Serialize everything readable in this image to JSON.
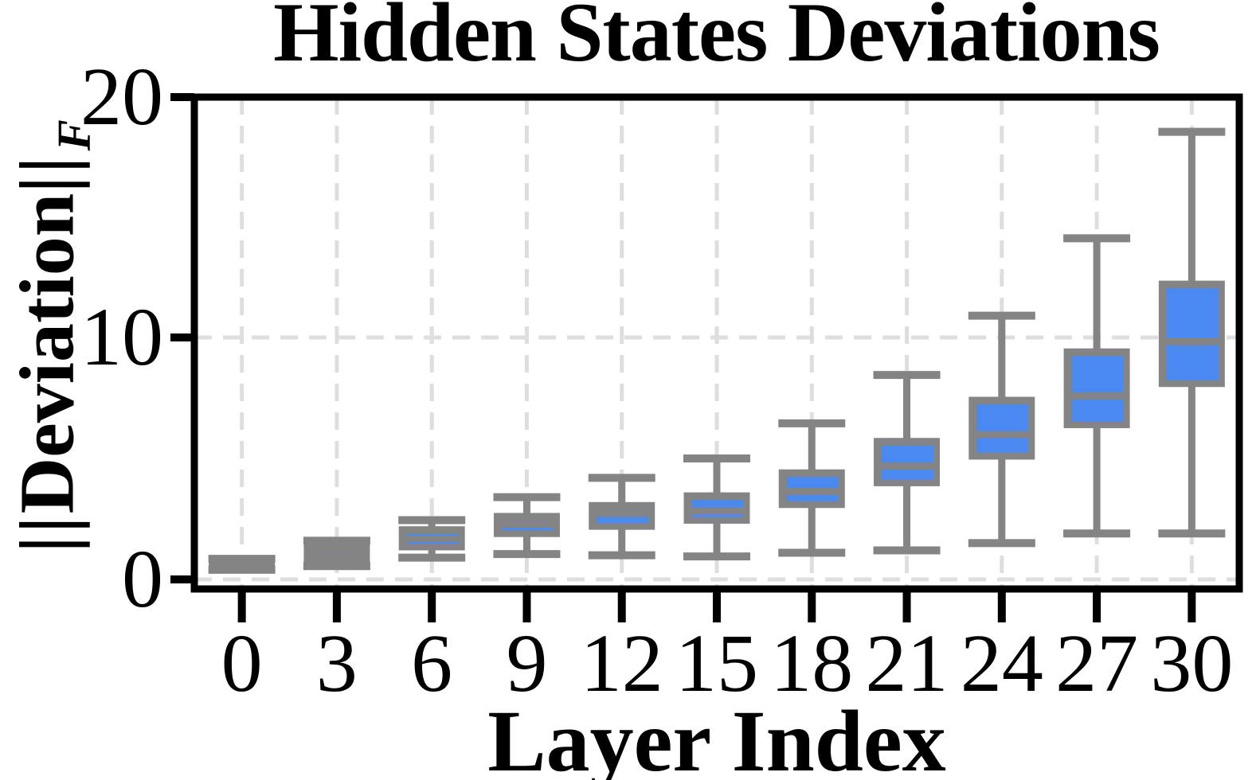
{
  "title": "Hidden States Deviations",
  "x_axis": {
    "label": "Layer Index",
    "tick_labels": [
      "0",
      "3",
      "6",
      "9",
      "12",
      "15",
      "18",
      "21",
      "24",
      "27",
      "30"
    ]
  },
  "y_axis": {
    "label": "||Deviation||_F",
    "label_bars": "||",
    "label_word": "Deviation",
    "label_sub": "F",
    "tick_labels": [
      "0",
      "10",
      "20"
    ]
  },
  "colors": {
    "box_fill": "#4a89f0",
    "box_edge": "#848484",
    "whisker": "#848484",
    "median": "#848484",
    "grid": "#dedede",
    "spine": "#000000",
    "text": "#000000",
    "background": "#ffffff"
  },
  "chart_data": {
    "type": "boxplot",
    "title": "Hidden States Deviations",
    "xlabel": "Layer Index",
    "ylabel": "||Deviation||_F",
    "categories": [
      "0",
      "3",
      "6",
      "9",
      "12",
      "15",
      "18",
      "21",
      "24",
      "27",
      "30"
    ],
    "ylim": [
      0,
      20
    ],
    "yticks": [
      0,
      10,
      20
    ],
    "grid": "dashed light-gray, vertical at every category and horizontal at each y tick",
    "legend": "none",
    "boxes": [
      {
        "layer": "0",
        "whislo": 0.4,
        "q1": 0.55,
        "med": 0.62,
        "q3": 0.72,
        "whishi": 0.85
      },
      {
        "layer": "3",
        "whislo": 0.55,
        "q1": 0.8,
        "med": 1.0,
        "q3": 1.3,
        "whishi": 1.6
      },
      {
        "layer": "6",
        "whislo": 0.9,
        "q1": 1.35,
        "med": 1.7,
        "q3": 2.05,
        "whishi": 2.45
      },
      {
        "layer": "9",
        "whislo": 1.05,
        "q1": 1.9,
        "med": 2.3,
        "q3": 2.6,
        "whishi": 3.4
      },
      {
        "layer": "12",
        "whislo": 1.0,
        "q1": 2.2,
        "med": 2.75,
        "q3": 3.05,
        "whishi": 4.2
      },
      {
        "layer": "15",
        "whislo": 0.95,
        "q1": 2.45,
        "med": 2.85,
        "q3": 3.45,
        "whishi": 5.0
      },
      {
        "layer": "18",
        "whislo": 1.1,
        "q1": 3.1,
        "med": 3.65,
        "q3": 4.4,
        "whishi": 6.45
      },
      {
        "layer": "21",
        "whislo": 1.2,
        "q1": 4.0,
        "med": 4.7,
        "q3": 5.7,
        "whishi": 8.45
      },
      {
        "layer": "24",
        "whislo": 1.5,
        "q1": 5.1,
        "med": 6.0,
        "q3": 7.4,
        "whishi": 10.9
      },
      {
        "layer": "27",
        "whislo": 1.9,
        "q1": 6.4,
        "med": 7.6,
        "q3": 9.4,
        "whishi": 14.1
      },
      {
        "layer": "30",
        "whislo": 1.9,
        "q1": 8.1,
        "med": 9.85,
        "q3": 12.2,
        "whishi": 18.5
      }
    ]
  }
}
